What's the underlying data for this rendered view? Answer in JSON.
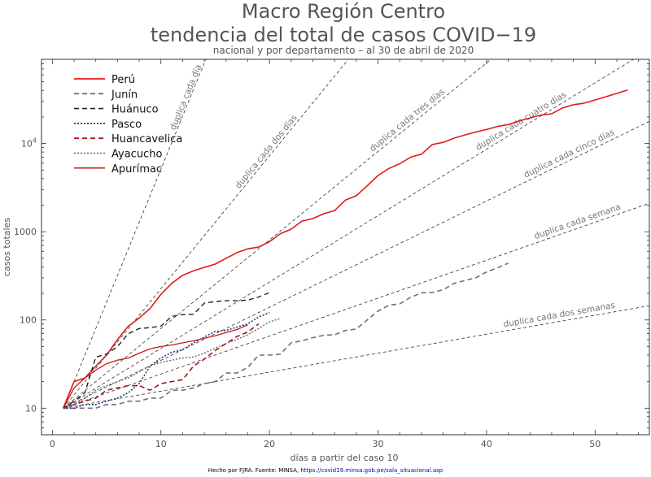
{
  "chart_data": {
    "type": "line",
    "title": "Macro Región Centro",
    "title_line2": "tendencia del total de casos COVID−19",
    "subtitle": "nacional y por departamento – al 30 de abril de 2020",
    "xlabel": "días a partir del caso 10",
    "ylabel": "casos totales",
    "xlim": [
      -1,
      55
    ],
    "ylim": [
      5,
      90000
    ],
    "yscale": "log",
    "x_ticks": [
      0,
      10,
      20,
      30,
      40,
      50
    ],
    "y_ticks": [
      {
        "value": 10,
        "label": "10"
      },
      {
        "value": 100,
        "label": "100"
      },
      {
        "value": 1000,
        "label": "1000"
      },
      {
        "value": 10000,
        "label": "10",
        "exp": "4"
      }
    ],
    "grid": false,
    "legend_position": "top-left",
    "reference_lines": [
      {
        "label": "duplica cada día",
        "doubling_days": 1
      },
      {
        "label": "duplica cada dos días",
        "doubling_days": 2
      },
      {
        "label": "duplica cada tres días",
        "doubling_days": 3
      },
      {
        "label": "duplica cada cuatro días",
        "doubling_days": 4
      },
      {
        "label": "duplica cada cinco días",
        "doubling_days": 5
      },
      {
        "label": "duplica cada semana",
        "doubling_days": 7
      },
      {
        "label": "duplica cada dos semanas",
        "doubling_days": 14
      }
    ],
    "series": [
      {
        "name": "Perú",
        "color": "#e31a1c",
        "dash": "solid",
        "width": 1.6,
        "x": [
          1,
          2,
          3,
          4,
          5,
          6,
          7,
          8,
          9,
          10,
          11,
          12,
          13,
          14,
          15,
          16,
          17,
          18,
          19,
          20,
          21,
          22,
          23,
          24,
          25,
          26,
          27,
          28,
          29,
          30,
          31,
          32,
          33,
          34,
          35,
          36,
          37,
          38,
          39,
          40,
          41,
          42,
          43,
          44,
          45,
          46,
          47,
          48,
          49,
          50,
          51,
          52,
          53
        ],
        "values": [
          10,
          20,
          22,
          30,
          40,
          60,
          85,
          105,
          135,
          195,
          260,
          320,
          360,
          395,
          430,
          500,
          580,
          640,
          670,
          770,
          950,
          1070,
          1320,
          1410,
          1600,
          1740,
          2280,
          2560,
          3310,
          4340,
          5210,
          5900,
          7000,
          7560,
          9730,
          10300,
          11500,
          12500,
          13500,
          14400,
          15600,
          16400,
          18000,
          19500,
          21000,
          21700,
          25300,
          27500,
          28700,
          31200,
          33900,
          36900,
          40500
        ]
      },
      {
        "name": "Junín",
        "color": "#7f6878",
        "dash": "6,4",
        "width": 1.6,
        "x": [
          1,
          2,
          3,
          4,
          5,
          6,
          7,
          8,
          9,
          10,
          11,
          12,
          13,
          14,
          15,
          16,
          17,
          18,
          19,
          20,
          21,
          22,
          23,
          24,
          25,
          26,
          27,
          28,
          29,
          30,
          31,
          32,
          33,
          34,
          35,
          36,
          37,
          38,
          39,
          40,
          41,
          42
        ],
        "values": [
          10,
          10,
          10,
          10,
          11,
          11,
          12,
          12,
          13,
          13,
          16,
          16,
          17,
          19,
          20,
          25,
          25,
          29,
          40,
          40,
          41,
          55,
          58,
          63,
          67,
          68,
          76,
          79,
          100,
          126,
          147,
          152,
          180,
          203,
          205,
          220,
          260,
          280,
          300,
          350,
          390,
          440
        ]
      },
      {
        "name": "Huánuco",
        "color": "#222222",
        "dash": "6,4",
        "width": 1.4,
        "x": [
          1,
          2,
          3,
          4,
          5,
          6,
          7,
          8,
          9,
          10,
          11,
          12,
          13,
          14,
          15,
          16,
          17,
          18,
          19,
          20
        ],
        "values": [
          10,
          12,
          15,
          38,
          41,
          50,
          70,
          80,
          82,
          85,
          110,
          115,
          116,
          155,
          162,
          165,
          165,
          168,
          182,
          204
        ]
      },
      {
        "name": "Pasco",
        "color": "#1f3a6e",
        "dash": "2,2",
        "width": 1.6,
        "x": [
          1,
          2,
          3,
          4,
          5,
          6,
          7,
          8,
          9,
          10,
          11,
          12,
          13,
          14,
          15,
          16,
          17,
          18,
          19,
          20
        ],
        "values": [
          10,
          10,
          11,
          11,
          12,
          13,
          15,
          19,
          30,
          37,
          43,
          46,
          55,
          64,
          74,
          76,
          83,
          90,
          108,
          121
        ]
      },
      {
        "name": "Huancavelica",
        "color": "#a0151b",
        "dash": "6,4",
        "width": 1.6,
        "x": [
          1,
          2,
          3,
          4,
          5,
          6,
          7,
          8,
          9,
          10,
          11,
          12,
          13,
          14,
          15,
          16,
          17,
          18,
          19
        ],
        "values": [
          10,
          11,
          12,
          13,
          16,
          17,
          18,
          18,
          16,
          19,
          20,
          21,
          30,
          36,
          45,
          54,
          65,
          73,
          90
        ]
      },
      {
        "name": "Ayacucho",
        "color": "#666666",
        "dash": "2,2",
        "width": 1.4,
        "x": [
          1,
          2,
          3,
          4,
          5,
          6,
          7,
          8,
          9,
          10,
          11,
          12,
          13,
          14,
          15,
          16,
          17,
          18,
          19,
          20,
          21
        ],
        "values": [
          10,
          11,
          13,
          16,
          18,
          20,
          22,
          26,
          30,
          33,
          35,
          37,
          38,
          42,
          48,
          54,
          60,
          68,
          80,
          95,
          104
        ]
      },
      {
        "name": "Apurímac",
        "color": "#c81717",
        "dash": "solid",
        "width": 1.3,
        "x": [
          1,
          2,
          3,
          4,
          5,
          6,
          7,
          8,
          9,
          10,
          11,
          12,
          13,
          14,
          15,
          16,
          17,
          18
        ],
        "values": [
          10,
          17,
          22,
          27,
          32,
          35,
          37,
          42,
          47,
          50,
          52,
          55,
          58,
          62,
          66,
          72,
          78,
          88
        ]
      }
    ]
  },
  "credit": {
    "text": "Hecho por FJRA. Fuente: MINSA, ",
    "link": "https://covid19.minsa.gob.pe/sala_situacional.asp"
  }
}
